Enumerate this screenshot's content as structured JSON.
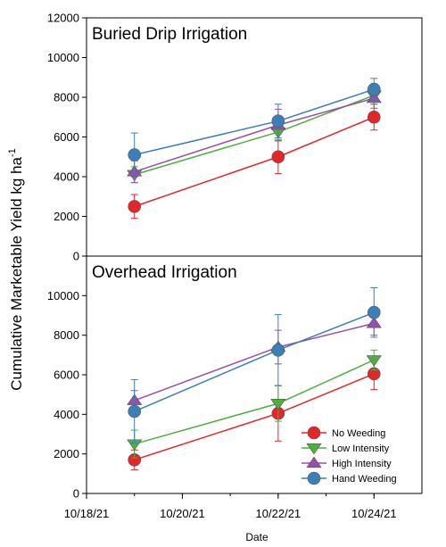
{
  "chart_data": {
    "type": "line",
    "ylabel_main": "Cumulative Marketable Yield kg ha",
    "ylabel_sup": "-1",
    "xlabel": "Date",
    "x_ticks": [
      "10/18/21",
      "10/20/21",
      "10/22/21",
      "10/24/21"
    ],
    "x_dates": [
      "10/19/21",
      "10/22/21",
      "10/24/21"
    ],
    "xlim": [
      "10/18/21",
      "10/25/21"
    ],
    "legend_position": "bottom-right",
    "legend": [
      {
        "name": "No Weeding",
        "color": "#e3262a",
        "marker": "circle"
      },
      {
        "name": "Low Intensity",
        "color": "#4caf3e",
        "marker": "triangle-down"
      },
      {
        "name": "High Intensity",
        "color": "#9b4ea8",
        "marker": "triangle-up"
      },
      {
        "name": "Hand Weeding",
        "color": "#3b7fb8",
        "marker": "circle"
      }
    ],
    "panels": [
      {
        "title": "Buried Drip Irrigation",
        "ylim": [
          0,
          12000
        ],
        "y_ticks": [
          "0",
          "2000",
          "4000",
          "6000",
          "8000",
          "10000",
          "12000"
        ],
        "series": [
          {
            "name": "No Weeding",
            "values": [
              2500,
              5000,
              7000
            ],
            "err": [
              600,
              850,
              650
            ]
          },
          {
            "name": "Low Intensity",
            "values": [
              4100,
              6250,
              8100
            ],
            "err": [
              400,
              400,
              450
            ]
          },
          {
            "name": "High Intensity",
            "values": [
              4250,
              6600,
              7950
            ],
            "err": [
              550,
              800,
              500
            ]
          },
          {
            "name": "Hand Weeding",
            "values": [
              5100,
              6800,
              8400
            ],
            "err": [
              1100,
              850,
              550
            ]
          }
        ]
      },
      {
        "title": "Overhead Irrigation",
        "ylim": [
          0,
          12000
        ],
        "y_ticks": [
          "0",
          "2000",
          "4000",
          "6000",
          "8000",
          "10000"
        ],
        "series": [
          {
            "name": "No Weeding",
            "values": [
              1700,
              4050,
              6050
            ],
            "err": [
              500,
              1400,
              800
            ]
          },
          {
            "name": "Low Intensity",
            "values": [
              2500,
              4550,
              6750
            ],
            "err": [
              700,
              900,
              500
            ]
          },
          {
            "name": "High Intensity",
            "values": [
              4700,
              7400,
              8600
            ],
            "err": [
              500,
              850,
              600
            ]
          },
          {
            "name": "Hand Weeding",
            "values": [
              4150,
              7250,
              9150
            ],
            "err": [
              1600,
              1800,
              1250
            ]
          }
        ]
      }
    ]
  }
}
